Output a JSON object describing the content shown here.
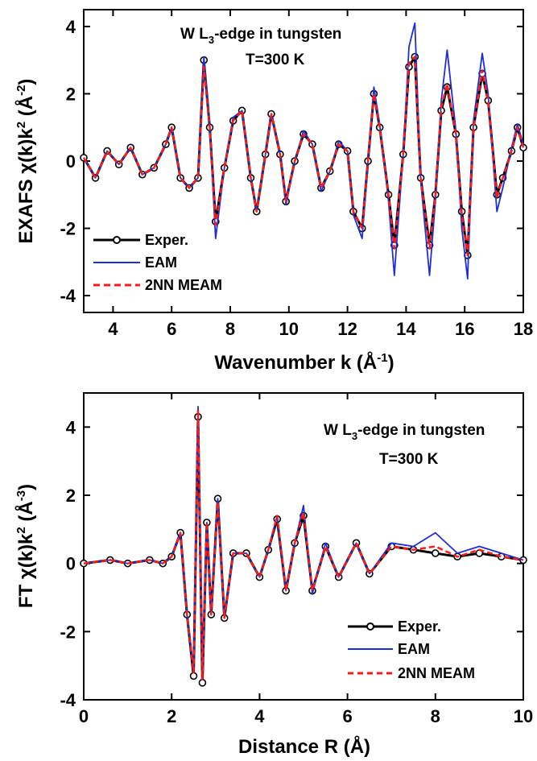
{
  "chart_data": [
    {
      "type": "line",
      "xlabel": "Wavenumber k (Å-1)",
      "ylabel": "EXAFS χ(k)k2 (Å-2)",
      "xlim": [
        3,
        18
      ],
      "ylim": [
        -4.5,
        4.5
      ],
      "xticks": [
        4,
        6,
        8,
        10,
        12,
        14,
        16,
        18
      ],
      "yticks": [
        -4,
        -2,
        0,
        2,
        4
      ],
      "annotations": [
        "W L3-edge in tungsten",
        "T=300 K"
      ],
      "legend": [
        "Exper.",
        "EAM",
        "2NN MEAM"
      ],
      "legend_position": "bottom-left",
      "colors": {
        "exper": "#000000",
        "eam": "#1f2fd6",
        "meam": "#ff1a1a"
      },
      "series": [
        {
          "name": "Exper.",
          "x": [
            3.0,
            3.4,
            3.8,
            4.2,
            4.6,
            5.0,
            5.4,
            5.8,
            6.0,
            6.3,
            6.6,
            6.9,
            7.1,
            7.3,
            7.5,
            7.8,
            8.1,
            8.4,
            8.7,
            8.9,
            9.2,
            9.4,
            9.7,
            9.9,
            10.2,
            10.5,
            10.8,
            11.1,
            11.4,
            11.7,
            12.0,
            12.2,
            12.5,
            12.7,
            12.9,
            13.1,
            13.4,
            13.6,
            13.9,
            14.1,
            14.3,
            14.5,
            14.8,
            15.0,
            15.2,
            15.4,
            15.7,
            15.9,
            16.1,
            16.3,
            16.6,
            16.8,
            17.1,
            17.3,
            17.6,
            17.8,
            18.0
          ],
          "y": [
            0.1,
            -0.5,
            0.3,
            -0.1,
            0.4,
            -0.4,
            -0.2,
            0.5,
            1.0,
            -0.5,
            -0.8,
            -0.5,
            3.0,
            1.0,
            -1.8,
            -0.2,
            1.2,
            1.5,
            -0.5,
            -1.5,
            0.2,
            1.4,
            0.2,
            -1.2,
            0.0,
            0.8,
            0.5,
            -0.8,
            -0.3,
            0.5,
            0.3,
            -1.5,
            -2.0,
            0.0,
            2.0,
            1.0,
            -1.0,
            -2.5,
            0.2,
            2.8,
            3.1,
            -0.5,
            -2.5,
            -1.0,
            1.5,
            2.2,
            0.8,
            -1.5,
            -2.8,
            1.0,
            2.6,
            1.8,
            -1.0,
            -0.5,
            0.3,
            1.0,
            0.4
          ]
        },
        {
          "name": "EAM",
          "x": [
            3.0,
            3.4,
            3.8,
            4.2,
            4.6,
            5.0,
            5.4,
            5.8,
            6.0,
            6.3,
            6.6,
            6.9,
            7.1,
            7.3,
            7.5,
            7.8,
            8.1,
            8.4,
            8.7,
            8.9,
            9.2,
            9.4,
            9.7,
            9.9,
            10.2,
            10.5,
            10.8,
            11.1,
            11.4,
            11.7,
            12.0,
            12.2,
            12.5,
            12.7,
            12.9,
            13.1,
            13.4,
            13.6,
            13.9,
            14.1,
            14.3,
            14.5,
            14.8,
            15.0,
            15.2,
            15.4,
            15.7,
            15.9,
            16.1,
            16.3,
            16.6,
            16.8,
            17.1,
            17.3,
            17.6,
            17.8,
            18.0
          ],
          "y": [
            0.1,
            -0.5,
            0.3,
            -0.1,
            0.4,
            -0.4,
            -0.2,
            0.5,
            1.0,
            -0.5,
            -0.8,
            -0.5,
            3.1,
            1.0,
            -2.3,
            -0.2,
            1.3,
            1.5,
            -0.5,
            -1.5,
            0.2,
            1.4,
            0.2,
            -1.3,
            0.0,
            0.9,
            0.5,
            -0.9,
            -0.3,
            0.6,
            0.3,
            -1.6,
            -2.3,
            0.0,
            2.2,
            1.1,
            -1.2,
            -3.4,
            0.2,
            3.4,
            4.1,
            -0.6,
            -3.4,
            -1.2,
            1.8,
            3.3,
            0.9,
            -2.0,
            -3.5,
            1.2,
            3.2,
            2.0,
            -1.5,
            -0.8,
            0.4,
            1.1,
            0.5
          ]
        },
        {
          "name": "2NN MEAM",
          "x": [
            3.0,
            3.4,
            3.8,
            4.2,
            4.6,
            5.0,
            5.4,
            5.8,
            6.0,
            6.3,
            6.6,
            6.9,
            7.1,
            7.3,
            7.5,
            7.8,
            8.1,
            8.4,
            8.7,
            8.9,
            9.2,
            9.4,
            9.7,
            9.9,
            10.2,
            10.5,
            10.8,
            11.1,
            11.4,
            11.7,
            12.0,
            12.2,
            12.5,
            12.7,
            12.9,
            13.1,
            13.4,
            13.6,
            13.9,
            14.1,
            14.3,
            14.5,
            14.8,
            15.0,
            15.2,
            15.4,
            15.7,
            15.9,
            16.1,
            16.3,
            16.6,
            16.8,
            17.1,
            17.3,
            17.6,
            17.8,
            18.0
          ],
          "y": [
            0.1,
            -0.5,
            0.3,
            -0.1,
            0.4,
            -0.4,
            -0.2,
            0.5,
            1.0,
            -0.5,
            -0.8,
            -0.5,
            2.8,
            1.0,
            -1.9,
            -0.2,
            1.2,
            1.5,
            -0.5,
            -1.5,
            0.2,
            1.4,
            0.2,
            -1.2,
            0.0,
            0.8,
            0.5,
            -0.8,
            -0.3,
            0.5,
            0.3,
            -1.5,
            -2.0,
            0.0,
            2.0,
            1.0,
            -1.0,
            -2.6,
            0.2,
            2.9,
            3.1,
            -0.5,
            -2.6,
            -1.0,
            1.6,
            2.3,
            0.8,
            -1.6,
            -2.8,
            1.0,
            2.7,
            1.8,
            -1.1,
            -0.5,
            0.3,
            1.0,
            0.4
          ]
        }
      ]
    },
    {
      "type": "line",
      "xlabel": "Distance R (Å)",
      "ylabel": "FT χ(k)k2 (Å-3)",
      "xlim": [
        0,
        10
      ],
      "ylim": [
        -4,
        5
      ],
      "xticks": [
        0,
        2,
        4,
        6,
        8,
        10
      ],
      "yticks": [
        -4,
        -2,
        0,
        2,
        4
      ],
      "annotations": [
        "W L3-edge in tungsten",
        "T=300 K"
      ],
      "legend": [
        "Exper.",
        "EAM",
        "2NN MEAM"
      ],
      "legend_position": "bottom-right",
      "colors": {
        "exper": "#000000",
        "eam": "#1f2fd6",
        "meam": "#ff1a1a"
      },
      "series": [
        {
          "name": "Exper.",
          "x": [
            0.0,
            0.6,
            1.0,
            1.5,
            1.8,
            2.0,
            2.2,
            2.35,
            2.5,
            2.6,
            2.7,
            2.8,
            2.9,
            3.05,
            3.2,
            3.4,
            3.7,
            4.0,
            4.2,
            4.4,
            4.6,
            4.8,
            5.0,
            5.2,
            5.5,
            5.8,
            6.2,
            6.5,
            7.0,
            7.5,
            8.0,
            8.5,
            9.0,
            9.5,
            10.0
          ],
          "y": [
            0.0,
            0.1,
            0.0,
            0.1,
            0.0,
            0.2,
            0.9,
            -1.5,
            -3.3,
            4.3,
            -3.5,
            1.2,
            -1.5,
            1.9,
            -1.6,
            0.3,
            0.3,
            -0.4,
            0.4,
            1.3,
            -0.8,
            0.6,
            1.4,
            -0.8,
            0.5,
            -0.4,
            0.6,
            -0.3,
            0.5,
            0.4,
            0.3,
            0.2,
            0.3,
            0.2,
            0.1
          ]
        },
        {
          "name": "EAM",
          "x": [
            0.0,
            0.6,
            1.0,
            1.5,
            1.8,
            2.0,
            2.2,
            2.35,
            2.5,
            2.6,
            2.7,
            2.8,
            2.9,
            3.05,
            3.2,
            3.4,
            3.7,
            4.0,
            4.2,
            4.4,
            4.6,
            4.8,
            5.0,
            5.2,
            5.5,
            5.8,
            6.2,
            6.5,
            7.0,
            7.5,
            8.0,
            8.5,
            9.0,
            9.5,
            10.0
          ],
          "y": [
            0.0,
            0.1,
            0.0,
            0.1,
            0.0,
            0.2,
            0.9,
            -1.5,
            -3.1,
            4.6,
            -3.3,
            1.2,
            -1.5,
            1.9,
            -1.6,
            0.3,
            0.3,
            -0.4,
            0.4,
            1.4,
            -0.8,
            0.6,
            1.7,
            -0.9,
            0.6,
            -0.4,
            0.6,
            -0.3,
            0.6,
            0.5,
            0.9,
            0.3,
            0.5,
            0.3,
            0.1
          ]
        },
        {
          "name": "2NN MEAM",
          "x": [
            0.0,
            0.6,
            1.0,
            1.5,
            1.8,
            2.0,
            2.2,
            2.35,
            2.5,
            2.6,
            2.7,
            2.8,
            2.9,
            3.05,
            3.2,
            3.4,
            3.7,
            4.0,
            4.2,
            4.4,
            4.6,
            4.8,
            5.0,
            5.2,
            5.5,
            5.8,
            6.2,
            6.5,
            7.0,
            7.5,
            8.0,
            8.5,
            9.0,
            9.5,
            10.0
          ],
          "y": [
            0.0,
            0.1,
            0.0,
            0.1,
            0.0,
            0.2,
            0.9,
            -1.5,
            -3.2,
            4.5,
            -3.4,
            1.2,
            -1.5,
            1.8,
            -1.6,
            0.3,
            0.3,
            -0.4,
            0.4,
            1.4,
            -0.8,
            0.6,
            1.5,
            -0.8,
            0.5,
            -0.4,
            0.6,
            -0.3,
            0.5,
            0.4,
            0.5,
            0.2,
            0.4,
            0.2,
            0.1
          ]
        }
      ]
    }
  ],
  "top": {
    "title_line": "W L",
    "title_sub": "3",
    "title_rest": "-edge in tungsten",
    "temp": "T=300 K",
    "ylabel_main": "EXAFS χ(k)k",
    "ylabel_sup": "2",
    "ylabel_unit": " (Å",
    "ylabel_unit_sup": "-2",
    "ylabel_close": ")",
    "xlabel_main": "Wavenumber k (Å",
    "xlabel_sup": "-1",
    "xlabel_close": ")",
    "legend": [
      "Exper.",
      "EAM",
      "2NN MEAM"
    ]
  },
  "bottom": {
    "title_line": "W L",
    "title_sub": "3",
    "title_rest": "-edge in tungsten",
    "temp": "T=300 K",
    "ylabel_main": "FT χ(k)k",
    "ylabel_sup": "2",
    "ylabel_unit": " (Å",
    "ylabel_unit_sup": "-3",
    "ylabel_close": ")",
    "xlabel": "Distance R (Å)",
    "legend": [
      "Exper.",
      "EAM",
      "2NN MEAM"
    ]
  }
}
